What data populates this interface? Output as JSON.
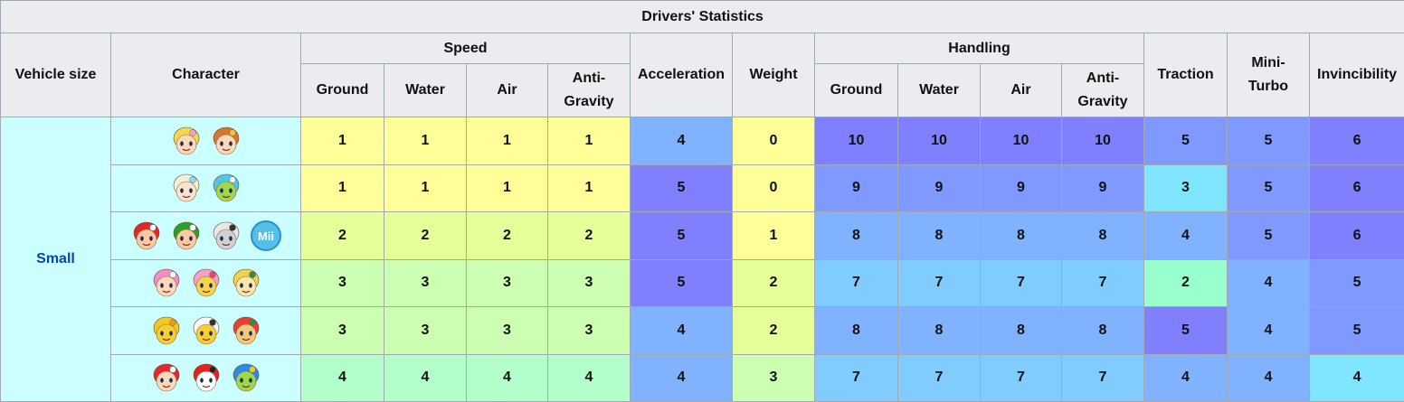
{
  "table": {
    "title": "Drivers' Statistics",
    "headers": {
      "vehicle_size": "Vehicle size",
      "character": "Character",
      "speed": "Speed",
      "acceleration": "Acceleration",
      "weight": "Weight",
      "handling": "Handling",
      "traction": "Traction",
      "mini_turbo": "Mini-\nTurbo",
      "invincibility": "Invincibility",
      "ground": "Ground",
      "water": "Water",
      "air": "Air",
      "anti_gravity": "Anti-\nGravity"
    },
    "vehicle_size_value": "Small",
    "rows": [
      {
        "characters": [
          "peach-icon",
          "daisy-icon"
        ],
        "values": [
          "1",
          "1",
          "1",
          "1",
          "4",
          "0",
          "10",
          "10",
          "10",
          "10",
          "5",
          "5",
          "6"
        ],
        "colors": [
          "#ffff99",
          "#ffff99",
          "#ffff99",
          "#ffff99",
          "#80b2ff",
          "#ffff99",
          "#8080ff",
          "#8080ff",
          "#8080ff",
          "#8080ff",
          "#8099ff",
          "#8099ff",
          "#8080ff"
        ]
      },
      {
        "characters": [
          "rosalina-icon",
          "larry-icon"
        ],
        "values": [
          "1",
          "1",
          "1",
          "1",
          "5",
          "0",
          "9",
          "9",
          "9",
          "9",
          "3",
          "5",
          "6"
        ],
        "colors": [
          "#ffff99",
          "#ffff99",
          "#ffff99",
          "#ffff99",
          "#8080ff",
          "#ffff99",
          "#8099ff",
          "#8099ff",
          "#8099ff",
          "#8099ff",
          "#80e5ff",
          "#8099ff",
          "#8080ff"
        ]
      },
      {
        "characters": [
          "baby-mario-icon",
          "baby-luigi-icon",
          "dry-bones-icon",
          "mii-icon"
        ],
        "values": [
          "2",
          "2",
          "2",
          "2",
          "5",
          "1",
          "8",
          "8",
          "8",
          "8",
          "4",
          "5",
          "6"
        ],
        "colors": [
          "#e5ff99",
          "#e5ff99",
          "#e5ff99",
          "#e5ff99",
          "#8080ff",
          "#ffff99",
          "#80b2ff",
          "#80b2ff",
          "#80b2ff",
          "#80b2ff",
          "#80b2ff",
          "#8099ff",
          "#8080ff"
        ]
      },
      {
        "characters": [
          "toadette-icon",
          "wendy-icon",
          "isabelle-icon"
        ],
        "values": [
          "3",
          "3",
          "3",
          "3",
          "5",
          "2",
          "7",
          "7",
          "7",
          "7",
          "2",
          "4",
          "5"
        ],
        "colors": [
          "#ccffb2",
          "#ccffb2",
          "#ccffb2",
          "#ccffb2",
          "#8080ff",
          "#e5ff99",
          "#80ccff",
          "#80ccff",
          "#80ccff",
          "#80ccff",
          "#99ffcc",
          "#80b2ff",
          "#8099ff"
        ]
      },
      {
        "characters": [
          "koopa-troopa-icon",
          "lakitu-icon",
          "bowser-jr-icon"
        ],
        "values": [
          "3",
          "3",
          "3",
          "3",
          "4",
          "2",
          "8",
          "8",
          "8",
          "8",
          "5",
          "4",
          "5"
        ],
        "colors": [
          "#ccffb2",
          "#ccffb2",
          "#ccffb2",
          "#ccffb2",
          "#80b2ff",
          "#e5ff99",
          "#80b2ff",
          "#80b2ff",
          "#80b2ff",
          "#80b2ff",
          "#8080ff",
          "#80b2ff",
          "#8099ff"
        ]
      },
      {
        "characters": [
          "toad-icon",
          "shy-guy-icon",
          "lemmy-icon"
        ],
        "values": [
          "4",
          "4",
          "4",
          "4",
          "4",
          "3",
          "7",
          "7",
          "7",
          "7",
          "4",
          "4",
          "4"
        ],
        "colors": [
          "#b2ffcc",
          "#b2ffcc",
          "#b2ffcc",
          "#b2ffcc",
          "#80b2ff",
          "#ccffb2",
          "#80ccff",
          "#80ccff",
          "#80ccff",
          "#80ccff",
          "#80b2ff",
          "#80b2ff",
          "#80e5ff"
        ]
      }
    ]
  },
  "icon_styles": {
    "peach-icon": {
      "hair": "#f7d84a",
      "skin": "#ffd8b8",
      "accent": "#f3a3c8"
    },
    "daisy-icon": {
      "hair": "#d8762c",
      "skin": "#ffd8b8",
      "accent": "#f2c23a"
    },
    "rosalina-icon": {
      "hair": "#f2f0d8",
      "skin": "#ffe3cc",
      "accent": "#8fd8f0"
    },
    "larry-icon": {
      "hair": "#4fc8e8",
      "skin": "#9fd84a",
      "accent": "#f0f0f0"
    },
    "baby-mario-icon": {
      "hair": "#e02828",
      "skin": "#ffc8a0",
      "accent": "#ffffff"
    },
    "baby-luigi-icon": {
      "hair": "#2aa02a",
      "skin": "#ffc8a0",
      "accent": "#ffffff"
    },
    "dry-bones-icon": {
      "hair": "#e8e8e8",
      "skin": "#d0d0d0",
      "accent": "#333333"
    },
    "mii-icon": {
      "hair": "#2a8fd0",
      "skin": "#55bfe8",
      "accent": "#ffffff"
    },
    "toadette-icon": {
      "hair": "#f28ec4",
      "skin": "#ffd8b8",
      "accent": "#ffffff"
    },
    "wendy-icon": {
      "hair": "#f4a0c8",
      "skin": "#f5d44a",
      "accent": "#e84080"
    },
    "isabelle-icon": {
      "hair": "#f5d050",
      "skin": "#fbe8a8",
      "accent": "#3c8a3c"
    },
    "koopa-troopa-icon": {
      "hair": "#f5c820",
      "skin": "#f5d030",
      "accent": "#e8a010"
    },
    "lakitu-icon": {
      "hair": "#f8f8f8",
      "skin": "#f5d030",
      "accent": "#333333"
    },
    "bowser-jr-icon": {
      "hair": "#e84030",
      "skin": "#f2c87a",
      "accent": "#3c8a3c"
    },
    "toad-icon": {
      "hair": "#e82828",
      "skin": "#ffd8b8",
      "accent": "#ffffff"
    },
    "shy-guy-icon": {
      "hair": "#e82020",
      "skin": "#ffffff",
      "accent": "#222222"
    },
    "lemmy-icon": {
      "hair": "#2a8ae8",
      "skin": "#9fd84a",
      "accent": "#f5c820"
    }
  }
}
